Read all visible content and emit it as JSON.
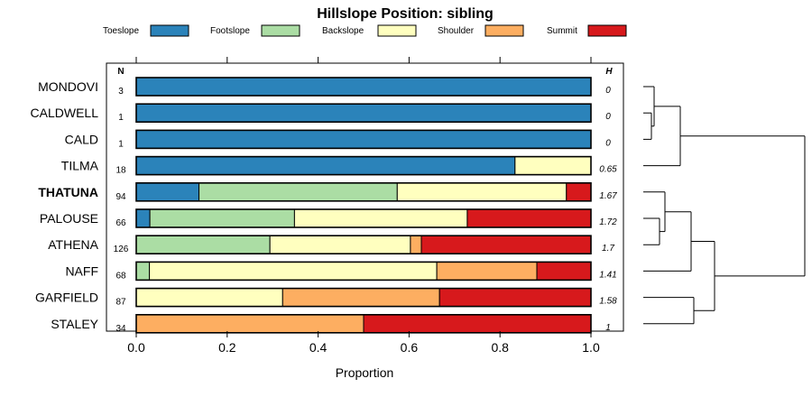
{
  "chart_data": {
    "type": "bar",
    "subtype": "stacked-horizontal-proportion",
    "title": "Hillslope Position: sibling",
    "xlabel": "Proportion",
    "ylabel": "",
    "xlim": [
      0,
      1
    ],
    "x_ticks": [
      "0.0",
      "0.2",
      "0.4",
      "0.6",
      "0.8",
      "1.0"
    ],
    "x_tick_values": [
      0,
      0.2,
      0.4,
      0.6,
      0.8,
      1.0
    ],
    "legend_position": "top",
    "n_header": "N",
    "h_header": "H",
    "highlight": "THATUNA",
    "categories": [
      "Toeslope",
      "Footslope",
      "Backslope",
      "Shoulder",
      "Summit"
    ],
    "colors": [
      "#2b83ba",
      "#abdda4",
      "#ffffbf",
      "#fdae61",
      "#d7191c"
    ],
    "rows": [
      {
        "label": "MONDOVI",
        "n": "3",
        "h": "0",
        "values": [
          1.0,
          0,
          0,
          0,
          0
        ]
      },
      {
        "label": "CALDWELL",
        "n": "1",
        "h": "0",
        "values": [
          1.0,
          0,
          0,
          0,
          0
        ]
      },
      {
        "label": "CALD",
        "n": "1",
        "h": "0",
        "values": [
          1.0,
          0,
          0,
          0,
          0
        ]
      },
      {
        "label": "TILMA",
        "n": "18",
        "h": "0.65",
        "values": [
          0.833,
          0,
          0.167,
          0,
          0
        ]
      },
      {
        "label": "THATUNA",
        "n": "94",
        "h": "1.67",
        "values": [
          0.138,
          0.436,
          0.372,
          0,
          0.054
        ]
      },
      {
        "label": "PALOUSE",
        "n": "66",
        "h": "1.72",
        "values": [
          0.03,
          0.318,
          0.38,
          0,
          0.272
        ]
      },
      {
        "label": "ATHENA",
        "n": "126",
        "h": "1.7",
        "values": [
          0,
          0.294,
          0.309,
          0.024,
          0.373
        ]
      },
      {
        "label": "NAFF",
        "n": "68",
        "h": "1.41",
        "values": [
          0,
          0.029,
          0.632,
          0.22,
          0.119
        ]
      },
      {
        "label": "GARFIELD",
        "n": "87",
        "h": "1.58",
        "values": [
          0,
          0,
          0.322,
          0.345,
          0.333
        ]
      },
      {
        "label": "STALEY",
        "n": "34",
        "h": "1",
        "values": [
          0,
          0,
          0,
          0.5,
          0.5
        ]
      }
    ],
    "dendrogram": true
  }
}
